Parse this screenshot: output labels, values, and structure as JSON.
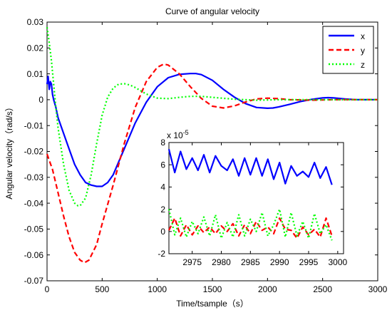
{
  "chart_data": [
    {
      "type": "line",
      "title": "Curve of angular velocity",
      "xlabel": "Time/tsample（s）",
      "ylabel": "Angular velocity（rad/s）",
      "xlim": [
        0,
        3000
      ],
      "ylim": [
        -0.07,
        0.03
      ],
      "x_ticks": [
        "0",
        "500",
        "1000",
        "1500",
        "2000",
        "2500",
        "3000"
      ],
      "y_ticks": [
        "0.03",
        "0.02",
        "0.01",
        "0",
        "-0.01",
        "-0.02",
        "-0.03",
        "-0.04",
        "-0.05",
        "-0.06",
        "-0.07"
      ],
      "x_tick_values": [
        0,
        500,
        1000,
        1500,
        2000,
        2500,
        3000
      ],
      "y_tick_values": [
        0.03,
        0.02,
        0.01,
        0,
        -0.01,
        -0.02,
        -0.03,
        -0.04,
        -0.05,
        -0.06,
        -0.07
      ],
      "grid": false,
      "legend": "top-right",
      "series": [
        {
          "name": "x",
          "color": "#0000ff",
          "style": "solid",
          "x": [
            0,
            10,
            20,
            30,
            40,
            50,
            60,
            80,
            100,
            150,
            200,
            250,
            300,
            350,
            400,
            450,
            500,
            550,
            600,
            700,
            800,
            900,
            1000,
            1100,
            1200,
            1300,
            1350,
            1400,
            1500,
            1600,
            1700,
            1800,
            1900,
            2000,
            2050,
            2100,
            2200,
            2300,
            2400,
            2500,
            2550,
            2600,
            2700,
            2800,
            3000
          ],
          "y": [
            0.006,
            0.009,
            0.004,
            0.007,
            0.006,
            0.002,
            0.0,
            -0.003,
            -0.007,
            -0.013,
            -0.019,
            -0.025,
            -0.029,
            -0.032,
            -0.033,
            -0.0335,
            -0.0335,
            -0.032,
            -0.029,
            -0.019,
            -0.009,
            -0.001,
            0.005,
            0.0085,
            0.0098,
            0.0101,
            0.0101,
            0.0097,
            0.0075,
            0.004,
            0.001,
            -0.0015,
            -0.003,
            -0.0033,
            -0.0032,
            -0.0028,
            -0.0018,
            -0.0007,
            0.0001,
            0.0007,
            0.0008,
            0.0007,
            0.0003,
            0.0,
            0.0
          ]
        },
        {
          "name": "y",
          "color": "#ff0000",
          "style": "dashed",
          "x": [
            0,
            50,
            100,
            150,
            200,
            250,
            300,
            340,
            380,
            450,
            500,
            600,
            700,
            800,
            900,
            1000,
            1060,
            1100,
            1200,
            1300,
            1400,
            1500,
            1600,
            1700,
            1800,
            1900,
            2000,
            2100,
            2200,
            2400,
            2600,
            3000
          ],
          "y": [
            -0.021,
            -0.027,
            -0.036,
            -0.045,
            -0.053,
            -0.059,
            -0.062,
            -0.063,
            -0.062,
            -0.056,
            -0.048,
            -0.033,
            -0.017,
            -0.003,
            0.007,
            0.0125,
            0.0138,
            0.0134,
            0.01,
            0.005,
            0.0005,
            -0.0025,
            -0.0032,
            -0.0024,
            -0.0009,
            0.0003,
            0.0006,
            0.0004,
            0.0,
            -0.0002,
            0.0,
            0.0
          ]
        },
        {
          "name": "z",
          "color": "#00ff00",
          "style": "dotted",
          "x": [
            0,
            20,
            40,
            60,
            80,
            100,
            150,
            200,
            250,
            280,
            300,
            350,
            400,
            450,
            500,
            550,
            600,
            650,
            700,
            750,
            800,
            900,
            1000,
            1100,
            1200,
            1300,
            1400,
            1500,
            1700,
            1900,
            2100,
            3000
          ],
          "y": [
            0.028,
            0.022,
            0.015,
            0.006,
            -0.003,
            -0.011,
            -0.025,
            -0.035,
            -0.04,
            -0.041,
            -0.041,
            -0.038,
            -0.029,
            -0.017,
            -0.006,
            0.001,
            0.0045,
            0.006,
            0.0062,
            0.0057,
            0.0047,
            0.0022,
            0.0006,
            0.0004,
            0.0009,
            0.0013,
            0.0013,
            0.0009,
            0.0002,
            -0.0002,
            0.0,
            0.0
          ]
        }
      ]
    },
    {
      "type": "line",
      "title": "",
      "scale_label": "x 10",
      "scale_exponent": "-5",
      "xlim": [
        2971,
        3001
      ],
      "ylim": [
        -2,
        8
      ],
      "x_ticks": [
        "2975",
        "2980",
        "2985",
        "2990",
        "2995",
        "3000"
      ],
      "y_ticks": [
        "8",
        "6",
        "4",
        "2",
        "0",
        "-2"
      ],
      "x_tick_values": [
        2975,
        2980,
        2985,
        2990,
        2995,
        3000
      ],
      "y_tick_values": [
        8,
        6,
        4,
        2,
        0,
        -2
      ],
      "grid": false,
      "series": [
        {
          "name": "x",
          "color": "#0000ff",
          "style": "solid",
          "x": [
            2971,
            2972,
            2973,
            2974,
            2975,
            2976,
            2977,
            2978,
            2979,
            2980,
            2981,
            2982,
            2983,
            2984,
            2985,
            2986,
            2987,
            2988,
            2989,
            2990,
            2991,
            2992,
            2993,
            2994,
            2995,
            2996,
            2997,
            2998,
            2999
          ],
          "y": [
            7.4,
            5.3,
            7.2,
            5.6,
            6.6,
            5.5,
            6.9,
            5.3,
            6.8,
            5.9,
            5.5,
            6.5,
            5.0,
            6.6,
            5.1,
            6.6,
            5.0,
            6.5,
            4.7,
            6.2,
            4.3,
            5.9,
            5.0,
            5.4,
            4.9,
            6.2,
            4.8,
            5.8,
            4.2
          ]
        },
        {
          "name": "y",
          "color": "#ff0000",
          "style": "dashed",
          "x": [
            2971,
            2972,
            2973,
            2974,
            2975,
            2976,
            2977,
            2978,
            2979,
            2980,
            2981,
            2982,
            2983,
            2984,
            2985,
            2986,
            2987,
            2988,
            2989,
            2990,
            2991,
            2992,
            2993,
            2994,
            2995,
            2996,
            2997,
            2998,
            2999
          ],
          "y": [
            0.1,
            1.2,
            -0.4,
            0.6,
            -0.3,
            0.5,
            -0.1,
            0.4,
            -0.2,
            0.5,
            0.0,
            0.7,
            -0.4,
            0.6,
            -0.2,
            0.9,
            0.1,
            0.4,
            -0.2,
            1.2,
            0.2,
            0.1,
            -0.6,
            0.4,
            -0.3,
            0.2,
            -0.5,
            1.2,
            -0.4
          ]
        },
        {
          "name": "z",
          "color": "#00ff00",
          "style": "dotted",
          "x": [
            2971,
            2972,
            2973,
            2974,
            2975,
            2976,
            2977,
            2978,
            2979,
            2980,
            2981,
            2982,
            2983,
            2984,
            2985,
            2986,
            2987,
            2988,
            2989,
            2990,
            2991,
            2992,
            2993,
            2994,
            2995,
            2996,
            2997,
            2998,
            2999
          ],
          "y": [
            2.0,
            -0.3,
            1.2,
            -0.5,
            0.9,
            -0.2,
            1.3,
            -0.4,
            1.5,
            -0.6,
            0.8,
            -0.5,
            1.5,
            -0.4,
            1.1,
            0.0,
            1.7,
            -0.4,
            0.6,
            2.0,
            -0.5,
            1.7,
            -0.4,
            0.9,
            -0.6,
            1.6,
            -0.2,
            0.6,
            -0.8
          ]
        }
      ]
    }
  ]
}
